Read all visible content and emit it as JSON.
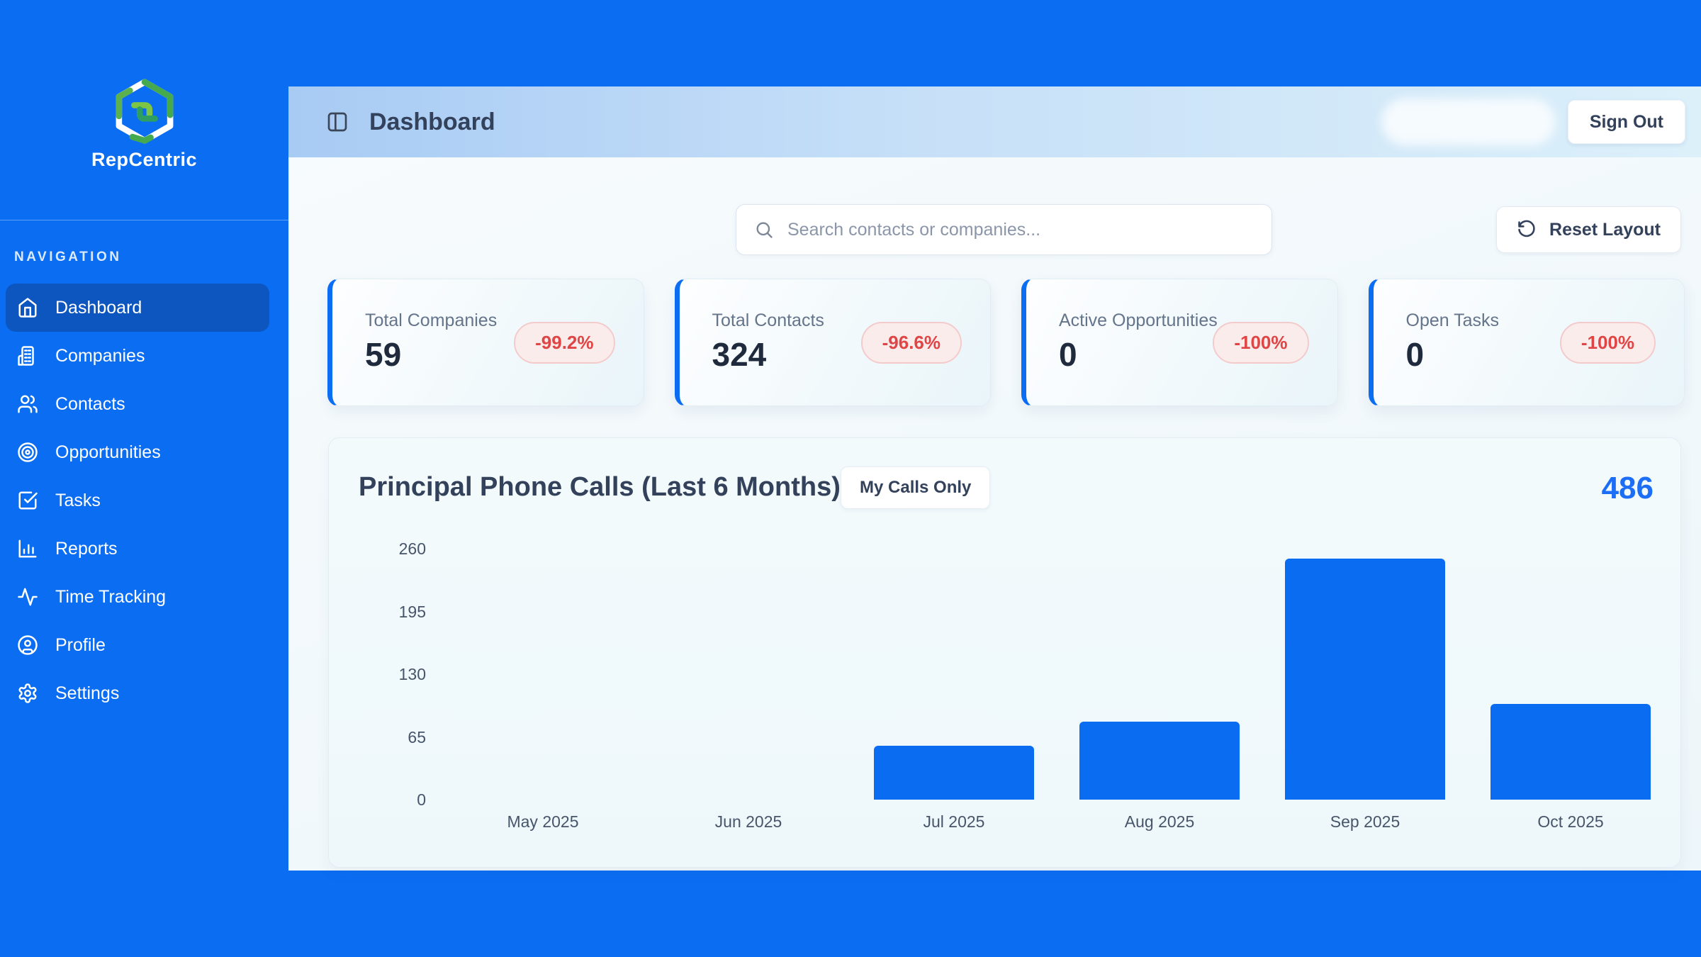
{
  "app": {
    "name": "RepCentric"
  },
  "sidebar": {
    "section_label": "NAVIGATION",
    "items": [
      {
        "label": "Dashboard",
        "icon": "home-icon",
        "active": true
      },
      {
        "label": "Companies",
        "icon": "building-icon",
        "active": false
      },
      {
        "label": "Contacts",
        "icon": "users-icon",
        "active": false
      },
      {
        "label": "Opportunities",
        "icon": "target-icon",
        "active": false
      },
      {
        "label": "Tasks",
        "icon": "check-square-icon",
        "active": false
      },
      {
        "label": "Reports",
        "icon": "bar-chart-icon",
        "active": false
      },
      {
        "label": "Time Tracking",
        "icon": "activity-icon",
        "active": false
      },
      {
        "label": "Profile",
        "icon": "user-circle-icon",
        "active": false
      },
      {
        "label": "Settings",
        "icon": "gear-icon",
        "active": false
      }
    ]
  },
  "header": {
    "title": "Dashboard",
    "sign_out_label": "Sign Out"
  },
  "toolbar": {
    "search_placeholder": "Search contacts or companies...",
    "reset_label": "Reset Layout"
  },
  "stats": {
    "cards": [
      {
        "label": "Total Companies",
        "value": "59",
        "delta": "-99.2%"
      },
      {
        "label": "Total Contacts",
        "value": "324",
        "delta": "-96.6%"
      },
      {
        "label": "Active Opportunities",
        "value": "0",
        "delta": "-100%"
      },
      {
        "label": "Open Tasks",
        "value": "0",
        "delta": "-100%"
      }
    ]
  },
  "chart_data": {
    "type": "bar",
    "title": "Principal Phone Calls (Last 6 Months)",
    "toggle_label": "My Calls Only",
    "total": "486",
    "categories": [
      "May 2025",
      "Jun 2025",
      "Jul 2025",
      "Aug 2025",
      "Sep 2025",
      "Oct 2025"
    ],
    "values": [
      0,
      0,
      56,
      81,
      250,
      99
    ],
    "yticks": [
      0,
      65,
      130,
      195,
      260
    ],
    "ylim": [
      0,
      260
    ],
    "xlabel": "",
    "ylabel": "",
    "grid": false,
    "legend": "none",
    "bar_color": "#0a6cf0"
  },
  "colors": {
    "brand_blue": "#0b6df2",
    "active_nav": "#0d55bf",
    "bar_blue": "#0a6cf0",
    "delta_red": "#e04545",
    "delta_bg": "#fbecec",
    "total_blue": "#1b6ef5",
    "header_gradient_start": "#a8cbf4",
    "header_gradient_end": "#dcf0fa"
  }
}
